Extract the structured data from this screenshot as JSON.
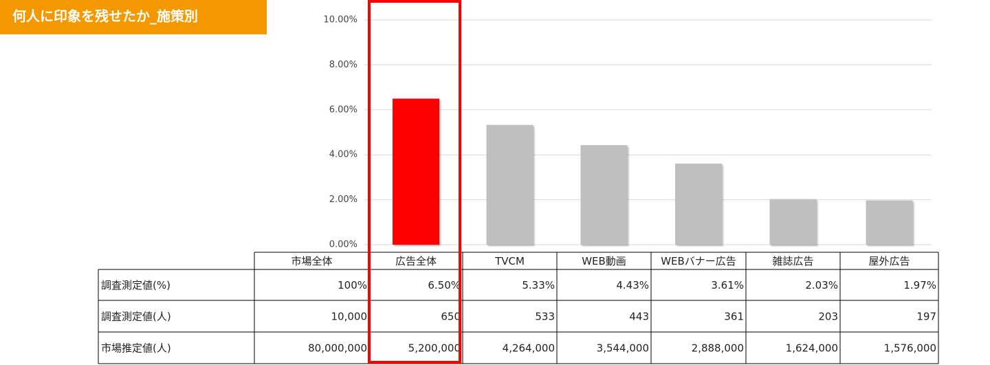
{
  "title": "何人に印象を残せたか_施策別",
  "chart_data": {
    "type": "bar",
    "categories": [
      "市場全体",
      "広告全体",
      "TVCM",
      "WEB動画",
      "WEBバナー広告",
      "雑誌広告",
      "屋外広告"
    ],
    "values": [
      null,
      6.5,
      5.33,
      4.43,
      3.61,
      2.03,
      1.97
    ],
    "colors": [
      "#bfbfbf",
      "#ff0000",
      "#bfbfbf",
      "#bfbfbf",
      "#bfbfbf",
      "#bfbfbf",
      "#bfbfbf"
    ],
    "ylim": [
      0,
      10
    ],
    "yticks": [
      {
        "value": 0,
        "label": "0.00%"
      },
      {
        "value": 2,
        "label": "2.00%"
      },
      {
        "value": 4,
        "label": "4.00%"
      },
      {
        "value": 6,
        "label": "6.00%"
      },
      {
        "value": 8,
        "label": "8.00%"
      },
      {
        "value": 10,
        "label": "10.00%"
      }
    ],
    "grid": true
  },
  "table": {
    "rows": [
      [
        "調査測定値(%)",
        "100%",
        "6.50%",
        "5.33%",
        "4.43%",
        "3.61%",
        "2.03%",
        "1.97%"
      ],
      [
        "調査測定値(人)",
        "10,000",
        "650",
        "533",
        "443",
        "361",
        "203",
        "197"
      ],
      [
        "市場推定値(人)",
        "80,000,000",
        "5,200,000",
        "4,264,000",
        "3,544,000",
        "2,888,000",
        "1,624,000",
        "1,576,000"
      ]
    ]
  }
}
